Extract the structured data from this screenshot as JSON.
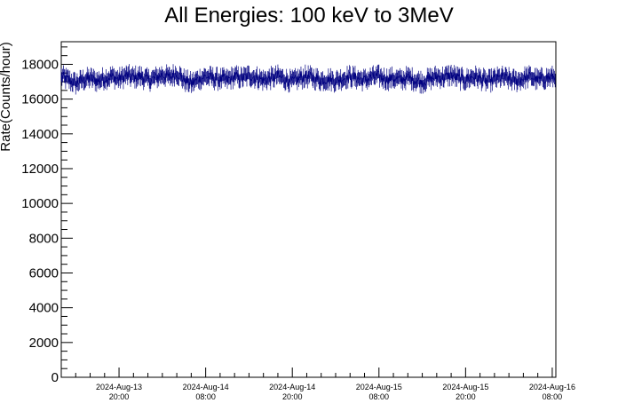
{
  "chart_data": {
    "type": "line",
    "title": "All Energies:  100 keV to 3MeV",
    "ylabel": "Rate(Counts/hour)",
    "xlabel": "",
    "ylim": [
      0,
      19300
    ],
    "grid": false,
    "legend": "none",
    "series_color": "#000080",
    "x_range_hours": [
      0,
      68.5
    ],
    "y_ticks": [
      0,
      2000,
      4000,
      6000,
      8000,
      10000,
      12000,
      14000,
      16000,
      18000
    ],
    "y_tick_labels": [
      "0",
      "2000",
      "4000",
      "6000",
      "8000",
      "10000",
      "12000",
      "14000",
      "16000",
      "18000"
    ],
    "x_ticks": [
      {
        "hour": 8,
        "line1": "2024-Aug-13",
        "line2": "20:00"
      },
      {
        "hour": 20,
        "line1": "2024-Aug-14",
        "line2": "08:00"
      },
      {
        "hour": 32,
        "line1": "2024-Aug-14",
        "line2": "20:00"
      },
      {
        "hour": 44,
        "line1": "2024-Aug-15",
        "line2": "08:00"
      },
      {
        "hour": 56,
        "line1": "2024-Aug-15",
        "line2": "20:00"
      },
      {
        "hour": 68,
        "line1": "2024-Aug-16",
        "line2": "08:00"
      }
    ],
    "series": [
      {
        "typical_value": 17200,
        "typical_error": 390,
        "min_value": 16200,
        "max_value": 18300,
        "points": [
          {
            "hour": 0.0,
            "value": 17300
          },
          {
            "hour": 1.0,
            "value": 17100
          },
          {
            "hour": 2.0,
            "value": 16900
          },
          {
            "hour": 3.0,
            "value": 17100
          },
          {
            "hour": 4.0,
            "value": 17200
          },
          {
            "hour": 5.0,
            "value": 17050
          },
          {
            "hour": 6.0,
            "value": 17200
          },
          {
            "hour": 7.0,
            "value": 17300
          },
          {
            "hour": 8.0,
            "value": 17150
          },
          {
            "hour": 9.0,
            "value": 17350
          },
          {
            "hour": 10.0,
            "value": 17250
          },
          {
            "hour": 11.0,
            "value": 17300
          },
          {
            "hour": 12.0,
            "value": 17100
          },
          {
            "hour": 13.0,
            "value": 17200
          },
          {
            "hour": 14.0,
            "value": 17400
          },
          {
            "hour": 15.0,
            "value": 17250
          },
          {
            "hour": 16.0,
            "value": 17500
          },
          {
            "hour": 17.0,
            "value": 17100
          },
          {
            "hour": 18.0,
            "value": 16900
          },
          {
            "hour": 19.0,
            "value": 17150
          },
          {
            "hour": 20.0,
            "value": 17300
          },
          {
            "hour": 21.0,
            "value": 17200
          },
          {
            "hour": 22.0,
            "value": 17150
          },
          {
            "hour": 23.0,
            "value": 17100
          },
          {
            "hour": 24.0,
            "value": 17300
          },
          {
            "hour": 25.0,
            "value": 17200
          },
          {
            "hour": 26.0,
            "value": 17350
          },
          {
            "hour": 27.0,
            "value": 17250
          },
          {
            "hour": 28.0,
            "value": 17100
          },
          {
            "hour": 29.0,
            "value": 17200
          },
          {
            "hour": 30.0,
            "value": 17300
          },
          {
            "hour": 31.0,
            "value": 17150
          },
          {
            "hour": 32.0,
            "value": 17000
          },
          {
            "hour": 33.0,
            "value": 17200
          },
          {
            "hour": 34.0,
            "value": 17300
          },
          {
            "hour": 35.0,
            "value": 17200
          },
          {
            "hour": 36.0,
            "value": 17100
          },
          {
            "hour": 37.0,
            "value": 17150
          },
          {
            "hour": 38.0,
            "value": 17050
          },
          {
            "hour": 39.0,
            "value": 17200
          },
          {
            "hour": 40.0,
            "value": 17300
          },
          {
            "hour": 41.0,
            "value": 17200
          },
          {
            "hour": 42.0,
            "value": 17100
          },
          {
            "hour": 43.0,
            "value": 17250
          },
          {
            "hour": 44.0,
            "value": 17300
          },
          {
            "hour": 45.0,
            "value": 17150
          },
          {
            "hour": 46.0,
            "value": 17200
          },
          {
            "hour": 47.0,
            "value": 17100
          },
          {
            "hour": 48.0,
            "value": 17250
          },
          {
            "hour": 49.0,
            "value": 17100
          },
          {
            "hour": 50.0,
            "value": 17000
          },
          {
            "hour": 51.0,
            "value": 17150
          },
          {
            "hour": 52.0,
            "value": 17300
          },
          {
            "hour": 53.0,
            "value": 17250
          },
          {
            "hour": 54.0,
            "value": 17400
          },
          {
            "hour": 55.0,
            "value": 17200
          },
          {
            "hour": 56.0,
            "value": 17100
          },
          {
            "hour": 57.0,
            "value": 17300
          },
          {
            "hour": 58.0,
            "value": 17200
          },
          {
            "hour": 59.0,
            "value": 17000
          },
          {
            "hour": 60.0,
            "value": 17150
          },
          {
            "hour": 61.0,
            "value": 17250
          },
          {
            "hour": 62.0,
            "value": 17150
          },
          {
            "hour": 63.0,
            "value": 17050
          },
          {
            "hour": 64.0,
            "value": 17200
          },
          {
            "hour": 65.0,
            "value": 17300
          },
          {
            "hour": 66.0,
            "value": 17100
          },
          {
            "hour": 67.0,
            "value": 17200
          },
          {
            "hour": 68.0,
            "value": 17250
          }
        ]
      }
    ]
  }
}
